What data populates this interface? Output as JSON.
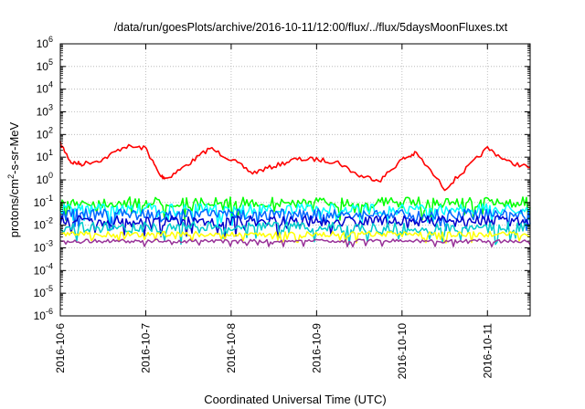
{
  "chart_data": {
    "type": "line",
    "title": "/data/run/goesPlots/archive/2016-10-11/12:00/flux/../flux/5daysMoonFluxes.txt",
    "xlabel": "Coordinated Universal Time (UTC)",
    "ylabel_parts": [
      "protons/cm",
      "2",
      "-s-sr-MeV"
    ],
    "y_scale": "log",
    "ylim_exp": [
      -6,
      6
    ],
    "y_ticks": [
      {
        "base": "10",
        "exp": "-6",
        "value": -6
      },
      {
        "base": "10",
        "exp": "-5",
        "value": -5
      },
      {
        "base": "10",
        "exp": "-4",
        "value": -4
      },
      {
        "base": "10",
        "exp": "-3",
        "value": -3
      },
      {
        "base": "10",
        "exp": "-2",
        "value": -2
      },
      {
        "base": "10",
        "exp": "-1",
        "value": -1
      },
      {
        "base": "10",
        "exp": "0",
        "value": 0
      },
      {
        "base": "10",
        "exp": "1",
        "value": 1
      },
      {
        "base": "10",
        "exp": "2",
        "value": 2
      },
      {
        "base": "10",
        "exp": "3",
        "value": 3
      },
      {
        "base": "10",
        "exp": "4",
        "value": 4
      },
      {
        "base": "10",
        "exp": "5",
        "value": 5
      },
      {
        "base": "10",
        "exp": "6",
        "value": 6
      }
    ],
    "x_ticks": [
      "2016-10-6",
      "2016-10-7",
      "2016-10-8",
      "2016-10-9",
      "2016-10-10",
      "2016-10-11"
    ],
    "xlim": [
      "2016-10-06 00:00",
      "2016-10-11 12:00"
    ],
    "grid": true,
    "series": [
      {
        "color": "#ff0000",
        "x": [
          "2016-10-06 00:00",
          "2016-10-06 03:00",
          "2016-10-06 06:00",
          "2016-10-06 12:00",
          "2016-10-06 18:00",
          "2016-10-07 00:00",
          "2016-10-07 04:00",
          "2016-10-07 06:00",
          "2016-10-07 12:00",
          "2016-10-07 18:00",
          "2016-10-08 00:00",
          "2016-10-08 06:00",
          "2016-10-08 12:00",
          "2016-10-08 18:00",
          "2016-10-09 00:00",
          "2016-10-09 06:00",
          "2016-10-09 12:00",
          "2016-10-09 18:00",
          "2016-10-10 00:00",
          "2016-10-10 04:00",
          "2016-10-10 12:00",
          "2016-10-10 18:00",
          "2016-10-11 00:00",
          "2016-10-11 06:00",
          "2016-10-11 12:00"
        ],
        "values": [
          40,
          6,
          5,
          8,
          30,
          25,
          1.5,
          1.2,
          5,
          25,
          8,
          2,
          4,
          8,
          8,
          6,
          1.5,
          1,
          8,
          15,
          0.4,
          3,
          25,
          6,
          3.5
        ]
      },
      {
        "color": "#00ff00",
        "x": [
          "2016-10-06 00:00",
          "2016-10-11 12:00"
        ],
        "values": [
          0.1,
          0.1
        ]
      },
      {
        "color": "#00ffff",
        "x": [
          "2016-10-06 00:00",
          "2016-10-11 12:00"
        ],
        "values": [
          0.05,
          0.05
        ]
      },
      {
        "color": "#0066ff",
        "x": [
          "2016-10-06 00:00",
          "2016-10-11 12:00"
        ],
        "values": [
          0.03,
          0.03
        ]
      },
      {
        "color": "#0000cc",
        "x": [
          "2016-10-06 00:00",
          "2016-10-11 12:00"
        ],
        "values": [
          0.015,
          0.015
        ]
      },
      {
        "color": "#00cccc",
        "x": [
          "2016-10-06 00:00",
          "2016-10-11 12:00"
        ],
        "values": [
          0.008,
          0.008
        ]
      },
      {
        "color": "#ffff00",
        "x": [
          "2016-10-06 00:00",
          "2016-10-11 12:00"
        ],
        "values": [
          0.004,
          0.004
        ]
      },
      {
        "color": "#993399",
        "x": [
          "2016-10-06 00:00",
          "2016-10-11 12:00"
        ],
        "values": [
          0.002,
          0.002
        ]
      }
    ]
  }
}
